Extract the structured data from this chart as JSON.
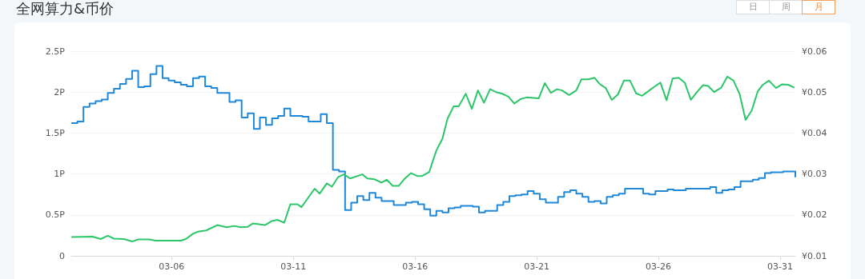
{
  "chart_data": {
    "type": "line",
    "title": "全网算力&币价",
    "annotations": [
      "日",
      "周",
      "月"
    ],
    "xlim": [
      "--03-01T21:00",
      "--03-31T15:00"
    ],
    "xticks": [
      {
        "value": "--03-06",
        "label": "03-06"
      },
      {
        "value": "--03-11",
        "label": "03-11"
      },
      {
        "value": "--03-16",
        "label": "03-16"
      },
      {
        "value": "--03-21",
        "label": "03-21"
      },
      {
        "value": "--03-26",
        "label": "03-26"
      },
      {
        "value": "--03-31",
        "label": "03-31"
      }
    ],
    "ylim": [
      0,
      2.5
    ],
    "yticks": [
      0,
      {
        "value": 0.5,
        "label": "0.5P"
      },
      {
        "value": 1,
        "label": "1P"
      },
      {
        "value": 1.5,
        "label": "1.5P"
      },
      {
        "value": 2,
        "label": "2P"
      },
      {
        "value": 2.5,
        "label": "2.5P"
      }
    ],
    "y2lim": [
      0.01,
      0.06
    ],
    "y2ticks": [
      {
        "value": 0.01,
        "label": "¥0.01"
      },
      {
        "value": 0.02,
        "label": "¥0.02"
      },
      {
        "value": 0.03,
        "label": "¥0.03"
      },
      {
        "value": 0.04,
        "label": "¥0.04"
      },
      {
        "value": 0.05,
        "label": "¥0.05"
      },
      {
        "value": 0.06,
        "label": "¥0.06"
      }
    ],
    "grid": "y",
    "marker": "none",
    "line_style": "solid",
    "series": [
      {
        "type": "step",
        "color": "#1f88d8",
        "x": [
          "--03-01T21:00",
          "--03-02T03:00",
          "--03-02T09:00",
          "--03-02T15:00",
          "--03-02T21:00",
          "--03-03T03:00",
          "--03-03T09:00",
          "--03-03T15:00",
          "--03-03T21:00",
          "--03-04T03:00",
          "--03-04T09:00",
          "--03-04T15:00",
          "--03-04T21:00",
          "--03-05T03:00",
          "--03-05T09:00",
          "--03-05T15:00",
          "--03-05T21:00",
          "--03-06T03:00",
          "--03-06T09:00",
          "--03-06T15:00",
          "--03-06T21:00",
          "--03-07T03:00",
          "--03-07T09:00",
          "--03-07T15:00",
          "--03-07T21:00",
          "--03-08T03:00",
          "--03-08T09:00",
          "--03-08T15:00",
          "--03-08T21:00",
          "--03-09T03:00",
          "--03-09T09:00",
          "--03-09T15:00",
          "--03-09T21:00",
          "--03-10T03:00",
          "--03-10T09:00",
          "--03-10T15:00",
          "--03-10T21:00",
          "--03-11T03:00",
          "--03-11T09:00",
          "--03-11T15:00",
          "--03-11T21:00",
          "--03-12T03:00",
          "--03-12T09:00",
          "--03-12T15:00",
          "--03-12T21:00",
          "--03-13T03:00",
          "--03-13T09:00",
          "--03-13T15:00",
          "--03-13T21:00",
          "--03-14T03:00",
          "--03-14T09:00",
          "--03-14T15:00",
          "--03-14T21:00",
          "--03-15T03:00",
          "--03-15T09:00",
          "--03-15T15:00",
          "--03-15T21:00",
          "--03-16T03:00",
          "--03-16T09:00",
          "--03-16T15:00",
          "--03-16T21:00",
          "--03-17T03:00",
          "--03-17T09:00",
          "--03-17T15:00",
          "--03-17T21:00",
          "--03-18T03:00",
          "--03-18T09:00",
          "--03-18T15:00",
          "--03-18T21:00",
          "--03-19T03:00",
          "--03-19T09:00",
          "--03-19T15:00",
          "--03-19T21:00",
          "--03-20T03:00",
          "--03-20T09:00",
          "--03-20T15:00",
          "--03-20T21:00",
          "--03-21T03:00",
          "--03-21T09:00",
          "--03-21T15:00",
          "--03-21T21:00",
          "--03-22T03:00",
          "--03-22T09:00",
          "--03-22T15:00",
          "--03-22T21:00",
          "--03-23T03:00",
          "--03-23T09:00",
          "--03-23T15:00",
          "--03-23T21:00",
          "--03-24T03:00",
          "--03-24T09:00",
          "--03-24T15:00",
          "--03-24T21:00",
          "--03-25T03:00",
          "--03-25T09:00",
          "--03-25T15:00",
          "--03-25T21:00",
          "--03-26T03:00",
          "--03-26T09:00",
          "--03-26T15:00",
          "--03-26T21:00",
          "--03-27T03:00",
          "--03-27T09:00",
          "--03-27T15:00",
          "--03-27T21:00",
          "--03-28T03:00",
          "--03-28T09:00",
          "--03-28T15:00",
          "--03-28T21:00",
          "--03-29T03:00",
          "--03-29T09:00",
          "--03-29T15:00",
          "--03-29T21:00",
          "--03-30T03:00",
          "--03-30T09:00",
          "--03-30T15:00",
          "--03-30T21:00",
          "--03-31T03:00",
          "--03-31T09:00",
          "--03-31T15:00"
        ],
        "values": [
          1.62,
          1.64,
          1.82,
          1.86,
          1.89,
          1.91,
          1.99,
          2.04,
          2.1,
          2.16,
          2.26,
          2.06,
          2.07,
          2.22,
          2.32,
          2.17,
          2.14,
          2.12,
          2.09,
          2.07,
          2.17,
          2.19,
          2.07,
          2.05,
          1.99,
          1.99,
          1.88,
          1.9,
          1.69,
          1.74,
          1.55,
          1.69,
          1.6,
          1.68,
          1.71,
          1.8,
          1.71,
          1.71,
          1.7,
          1.64,
          1.64,
          1.73,
          1.62,
          1.05,
          1.03,
          0.56,
          0.65,
          0.73,
          0.68,
          0.77,
          0.71,
          0.67,
          0.67,
          0.62,
          0.62,
          0.65,
          0.66,
          0.63,
          0.57,
          0.49,
          0.55,
          0.53,
          0.58,
          0.59,
          0.61,
          0.61,
          0.6,
          0.53,
          0.55,
          0.55,
          0.62,
          0.66,
          0.73,
          0.74,
          0.75,
          0.79,
          0.76,
          0.69,
          0.65,
          0.65,
          0.72,
          0.78,
          0.8,
          0.76,
          0.72,
          0.66,
          0.67,
          0.64,
          0.72,
          0.74,
          0.76,
          0.82,
          0.82,
          0.82,
          0.76,
          0.75,
          0.79,
          0.79,
          0.81,
          0.8,
          0.8,
          0.82,
          0.82,
          0.82,
          0.82,
          0.84,
          0.77,
          0.8,
          0.81,
          0.84,
          0.91,
          0.91,
          0.93,
          0.95,
          1.01,
          1.02,
          1.02,
          1.03,
          1.03,
          0.96
        ]
      },
      {
        "axis": "y2",
        "color": "#2cc56a",
        "x": [
          "--03-01T21:00",
          "--03-02T18:00",
          "--03-03T02:00",
          "--03-03T09:00",
          "--03-03T15:00",
          "--03-04T01:00",
          "--03-04T09:00",
          "--03-04T15:00",
          "--03-05T02:00",
          "--03-05T08:00",
          "--03-06T09:00",
          "--03-06T14:00",
          "--03-06T21:00",
          "--03-07T02:00",
          "--03-07T10:00",
          "--03-07T21:00",
          "--03-08T06:00",
          "--03-08T14:00",
          "--03-08T20:00",
          "--03-09T03:00",
          "--03-09T08:00",
          "--03-09T20:00",
          "--03-10T03:00",
          "--03-10T08:00",
          "--03-10T15:00",
          "--03-10T21:00",
          "--03-11T04:00",
          "--03-11T08:00",
          "--03-11T21:00",
          "--03-12T02:00",
          "--03-12T09:00",
          "--03-12T14:00",
          "--03-12T20:00",
          "--03-13T02:00",
          "--03-13T08:00",
          "--03-13T20:00",
          "--03-14T01:00",
          "--03-14T08:00",
          "--03-14T15:00",
          "--03-14T20:00",
          "--03-15T02:00",
          "--03-15T08:00",
          "--03-15T14:00",
          "--03-15T20:00",
          "--03-16T02:00",
          "--03-16T07:00",
          "--03-16T14:00",
          "--03-16T21:00",
          "--03-17T03:00",
          "--03-17T08:00",
          "--03-17T14:00",
          "--03-17T19:00",
          "--03-18T02:00",
          "--03-18T08:00",
          "--03-18T14:00",
          "--03-18T20:00",
          "--03-19T02:00",
          "--03-19T08:00",
          "--03-19T14:00",
          "--03-19T20:00",
          "--03-20T02:00",
          "--03-20T08:00",
          "--03-20T14:00",
          "--03-21T02:00",
          "--03-21T08:00",
          "--03-21T14:00",
          "--03-21T20:00",
          "--03-22T01:00",
          "--03-22T08:00",
          "--03-22T15:00",
          "--03-22T20:00",
          "--03-23T03:00",
          "--03-23T09:00",
          "--03-23T14:00",
          "--03-23T20:00",
          "--03-24T02:00",
          "--03-24T08:00",
          "--03-24T14:00",
          "--03-24T20:00",
          "--03-25T02:00",
          "--03-25T08:00",
          "--03-25T14:00",
          "--03-25T20:00",
          "--03-26T02:00",
          "--03-26T08:00",
          "--03-26T14:00",
          "--03-26T20:00",
          "--03-27T02:00",
          "--03-27T08:00",
          "--03-27T14:00",
          "--03-27T20:00",
          "--03-28T01:00",
          "--03-28T07:00",
          "--03-28T14:00",
          "--03-28T20:00",
          "--03-29T02:00",
          "--03-29T08:00",
          "--03-29T14:00",
          "--03-29T20:00",
          "--03-30T02:00",
          "--03-30T07:00",
          "--03-30T13:00",
          "--03-30T20:00",
          "--03-31T02:00",
          "--03-31T08:00",
          "--03-31T14:00"
        ],
        "values": [
          0.0146,
          0.0147,
          0.0141,
          0.0149,
          0.0142,
          0.0141,
          0.0135,
          0.014,
          0.014,
          0.0137,
          0.0137,
          0.0141,
          0.0154,
          0.0159,
          0.0162,
          0.0175,
          0.017,
          0.0173,
          0.017,
          0.0171,
          0.0179,
          0.0175,
          0.0185,
          0.0188,
          0.0181,
          0.0226,
          0.0226,
          0.0219,
          0.0264,
          0.0252,
          0.0277,
          0.0269,
          0.0292,
          0.0299,
          0.0289,
          0.0299,
          0.0289,
          0.0287,
          0.0279,
          0.0286,
          0.0271,
          0.0271,
          0.0289,
          0.0302,
          0.0295,
          0.0295,
          0.0305,
          0.0357,
          0.0386,
          0.0435,
          0.0465,
          0.0465,
          0.0496,
          0.0459,
          0.0504,
          0.0474,
          0.0507,
          0.05,
          0.0496,
          0.0489,
          0.0472,
          0.0483,
          0.0487,
          0.0485,
          0.0522,
          0.0498,
          0.0507,
          0.0504,
          0.0493,
          0.0504,
          0.0531,
          0.0531,
          0.0535,
          0.052,
          0.051,
          0.0481,
          0.0494,
          0.0528,
          0.0528,
          0.0497,
          0.0491,
          0.0502,
          0.0513,
          0.0523,
          0.048,
          0.0533,
          0.0535,
          0.0523,
          0.0481,
          0.05,
          0.0517,
          0.0515,
          0.05,
          0.0511,
          0.0538,
          0.0528,
          0.0496,
          0.0432,
          0.0455,
          0.0502,
          0.0518,
          0.0528,
          0.051,
          0.0519,
          0.0518,
          0.0511
        ]
      }
    ]
  }
}
